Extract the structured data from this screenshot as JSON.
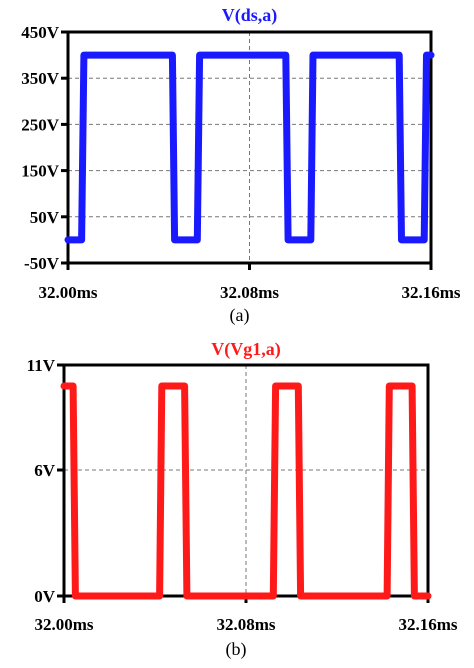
{
  "chart_data": [
    {
      "type": "line",
      "title": "V(ds,a)",
      "color": "#1a1aff",
      "caption": "(a)",
      "xlim": [
        32.0,
        32.16
      ],
      "ylim": [
        -50,
        450
      ],
      "x_ticks": [
        32.0,
        32.08,
        32.16
      ],
      "x_tick_labels": [
        "32.00ms",
        "32.08ms",
        "32.16ms"
      ],
      "y_ticks": [
        450,
        350,
        250,
        150,
        50,
        -50
      ],
      "y_tick_labels": [
        "450V",
        "350V",
        "250V",
        "150V",
        "50V",
        "-50V"
      ],
      "grid": true,
      "series": [
        {
          "x": [
            32.0,
            32.006,
            32.007,
            32.046,
            32.047,
            32.057,
            32.058,
            32.096,
            32.097,
            32.107,
            32.108,
            32.146,
            32.147,
            32.157,
            32.158,
            32.16
          ],
          "y": [
            0,
            0,
            400,
            400,
            0,
            0,
            400,
            400,
            0,
            0,
            400,
            400,
            0,
            0,
            400,
            400
          ]
        }
      ]
    },
    {
      "type": "line",
      "title": "V(Vg1,a)",
      "color": "#ff1a1a",
      "caption": "(b)",
      "xlim": [
        32.0,
        32.16
      ],
      "ylim": [
        0,
        11
      ],
      "x_ticks": [
        32.0,
        32.08,
        32.16
      ],
      "x_tick_labels": [
        "32.00ms",
        "32.08ms",
        "32.16ms"
      ],
      "y_ticks": [
        11,
        6,
        0
      ],
      "y_tick_labels": [
        "11V",
        "6V",
        "0V"
      ],
      "grid": true,
      "series": [
        {
          "x": [
            32.0,
            32.004,
            32.005,
            32.042,
            32.043,
            32.053,
            32.054,
            32.092,
            32.093,
            32.103,
            32.104,
            32.142,
            32.143,
            32.153,
            32.154,
            32.16
          ],
          "y": [
            10,
            10,
            0,
            0,
            10,
            10,
            0,
            0,
            10,
            10,
            0,
            0,
            10,
            10,
            0,
            0
          ]
        }
      ]
    }
  ]
}
